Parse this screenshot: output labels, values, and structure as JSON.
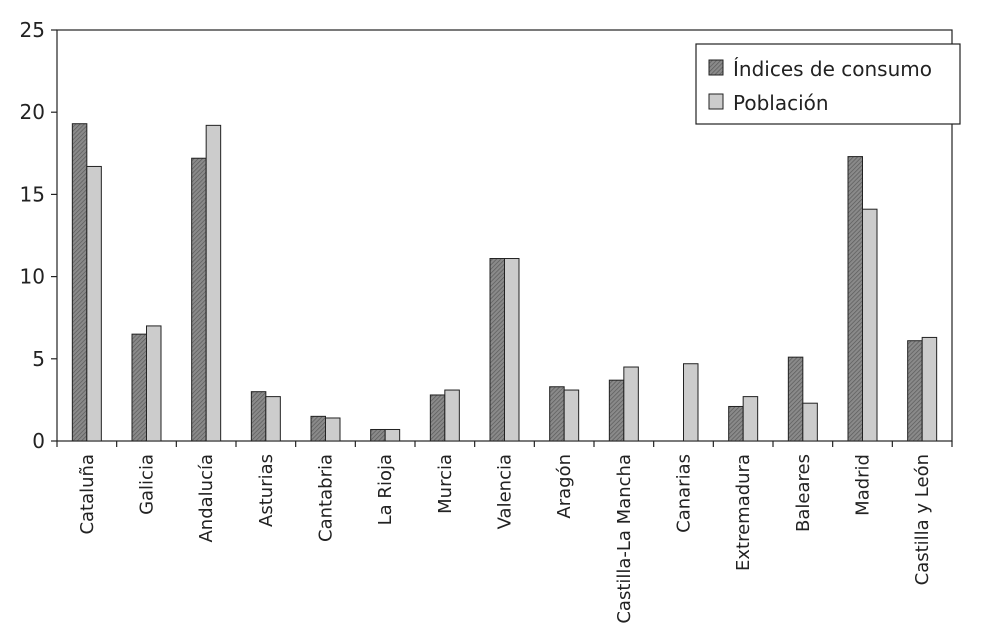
{
  "chart_data": {
    "type": "bar",
    "title": "",
    "xlabel": "",
    "ylabel": "",
    "ylim": [
      0,
      25
    ],
    "yticks": [
      0,
      5,
      10,
      15,
      20,
      25
    ],
    "grid": false,
    "legend_position": "top-right",
    "categories": [
      "Cataluña",
      "Galicia",
      "Andalucía",
      "Asturias",
      "Cantabria",
      "La Rioja",
      "Murcia",
      "Valencia",
      "Aragón",
      "Castilla-La Mancha",
      "Canarias",
      "Extremadura",
      "Baleares",
      "Madrid",
      "Castilla y León"
    ],
    "series": [
      {
        "name": "Índices de consumo",
        "color": "#7a7a7a",
        "pattern": "dark-hatch",
        "values": [
          19.3,
          6.5,
          17.2,
          3.0,
          1.5,
          0.7,
          2.8,
          11.1,
          3.3,
          3.7,
          0.0,
          2.1,
          5.1,
          17.3,
          6.1
        ]
      },
      {
        "name": "Población",
        "color": "#cccccc",
        "pattern": "light-solid",
        "values": [
          16.7,
          7.0,
          19.2,
          2.7,
          1.4,
          0.7,
          3.1,
          11.1,
          3.1,
          4.5,
          4.7,
          2.7,
          2.3,
          14.1,
          6.3
        ]
      }
    ]
  }
}
